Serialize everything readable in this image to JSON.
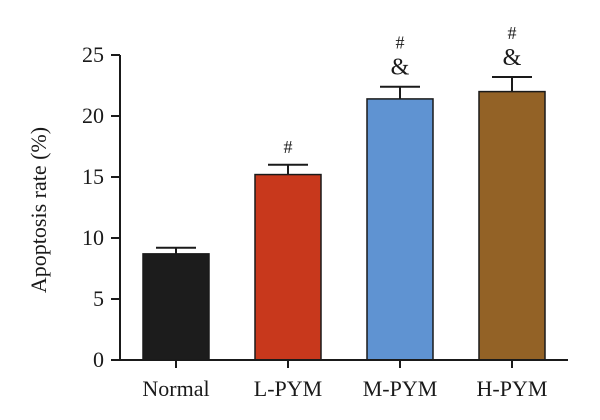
{
  "chart_data": {
    "type": "bar",
    "categories": [
      "Normal",
      "L-PYM",
      "M-PYM",
      "H-PYM"
    ],
    "values": [
      8.7,
      15.2,
      21.4,
      22.0
    ],
    "errors": [
      0.5,
      0.8,
      1.0,
      1.2
    ],
    "colors": [
      "#1c1c1c",
      "#c8381c",
      "#5f93d2",
      "#936226"
    ],
    "annotations": [
      [],
      [
        "#"
      ],
      [
        "#",
        "&"
      ],
      [
        "#",
        "&"
      ]
    ],
    "ylabel": "Apoptosis rate (%)",
    "xlabel": "",
    "ylim": [
      0,
      25
    ],
    "yticks": [
      0,
      5,
      10,
      15,
      20,
      25
    ],
    "grid": false
  }
}
